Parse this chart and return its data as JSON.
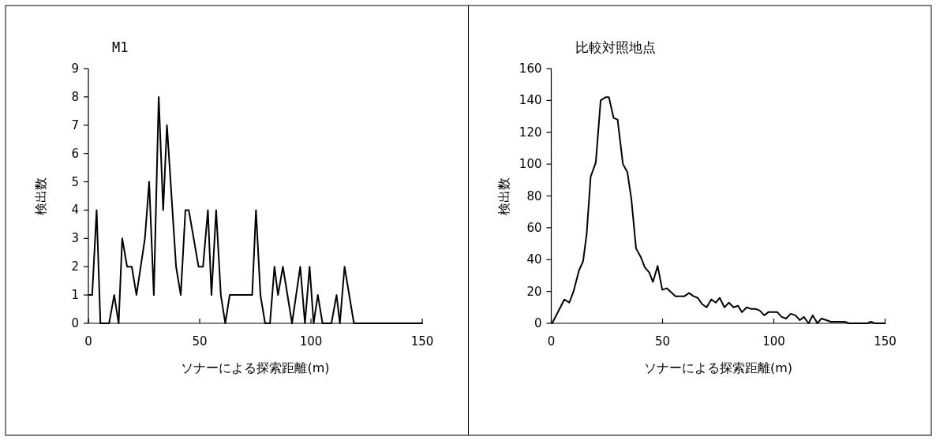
{
  "chart_data": [
    {
      "type": "line",
      "title": "M1",
      "xlabel": "ソナーによる探索距離(m)",
      "ylabel": "検出数",
      "xlim": [
        0,
        150
      ],
      "xticks": [
        0,
        50,
        100,
        150
      ],
      "ylim": [
        0,
        9
      ],
      "yticks": [
        0,
        1,
        2,
        3,
        4,
        5,
        6,
        7,
        8,
        9
      ],
      "grid": false,
      "marker": "none",
      "line_style": "solid",
      "series": [
        {
          "color": "#000000",
          "x": [
            0,
            1.7,
            3.7,
            5.4,
            9.3,
            11.6,
            13.6,
            15.2,
            17.4,
            19.5,
            21.6,
            25.4,
            27.3,
            29.4,
            31.6,
            33.6,
            35.3,
            39.4,
            41.5,
            43.6,
            45.1,
            49.5,
            51.5,
            53.7,
            55.3,
            57.4,
            59.5,
            61.5,
            63.5,
            73.6,
            75.3,
            77.3,
            79.4,
            81.6,
            83.6,
            85.2,
            87.4,
            91.5,
            95.2,
            97.3,
            99.4,
            101.2,
            103.1,
            105.2,
            109.2,
            111.5,
            113,
            115.1,
            119.3,
            150
          ],
          "values": [
            1,
            1,
            4,
            0,
            0,
            1,
            0,
            3,
            2,
            2,
            1,
            3,
            5,
            1,
            8,
            4,
            7,
            2,
            1,
            4,
            4,
            2,
            2,
            4,
            1,
            4,
            1,
            0,
            1,
            1,
            4,
            1,
            0,
            0,
            2,
            1,
            2,
            0,
            2,
            0,
            2,
            0,
            1,
            0,
            0,
            1,
            0,
            2,
            0,
            0
          ]
        }
      ]
    },
    {
      "type": "line",
      "title": "比較対照地点",
      "xlabel": "ソナーによる探索距離(m)",
      "ylabel": "検出数",
      "xlim": [
        0,
        150
      ],
      "xticks": [
        0,
        50,
        100,
        150
      ],
      "ylim": [
        0,
        160
      ],
      "yticks": [
        0,
        20,
        40,
        60,
        80,
        100,
        120,
        140,
        160
      ],
      "grid": false,
      "marker": "none",
      "line_style": "solid",
      "series": [
        {
          "color": "#000000",
          "x": [
            0.4,
            5.9,
            8.1,
            10,
            12.4,
            14.3,
            15.9,
            17.7,
            20,
            22.2,
            24.4,
            25.9,
            28,
            29.8,
            32.2,
            34.2,
            36,
            38.1,
            40.1,
            42.1,
            44,
            45.7,
            47.8,
            49.9,
            51.9,
            55.8,
            57.8,
            59.8,
            61.9,
            63.9,
            65.8,
            67.8,
            69.8,
            71.9,
            73.9,
            75.7,
            77.8,
            79.8,
            81.9,
            83.9,
            85.7,
            87.8,
            89.8,
            92,
            93.7,
            95.7,
            97.6,
            101.6,
            103.5,
            105.5,
            107.6,
            109.7,
            111.7,
            113.5,
            115.6,
            117.5,
            119.6,
            121.4,
            123.6,
            125.6,
            127.9,
            131.8,
            133.8,
            142.1,
            143.6,
            145.3,
            150
          ],
          "values": [
            0,
            15,
            13,
            20,
            33,
            39,
            56,
            92,
            101,
            140,
            142,
            142,
            129,
            128,
            100,
            95,
            78,
            47,
            42,
            35,
            32,
            26,
            36,
            21,
            22,
            17,
            17,
            17,
            19,
            17,
            16,
            12,
            10,
            15,
            13,
            16,
            10,
            13,
            10,
            11,
            7,
            10,
            9,
            9,
            8,
            5,
            7,
            7,
            4,
            3,
            6,
            5,
            2,
            4,
            0,
            5,
            0,
            3,
            2,
            1,
            1,
            1,
            0,
            0,
            1,
            0,
            0
          ]
        }
      ]
    }
  ]
}
